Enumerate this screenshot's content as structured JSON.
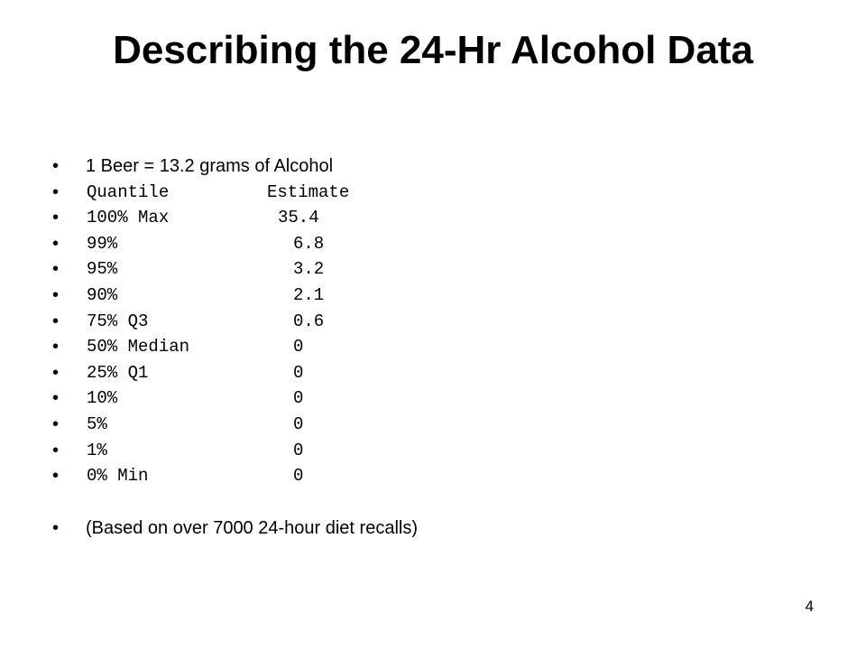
{
  "title": "Describing the 24-Hr Alcohol Data",
  "conversion_note": "1 Beer = 13.2 grams of Alcohol",
  "table_header": {
    "label": "Quantile",
    "value": "Estimate"
  },
  "quantiles": [
    {
      "label": "100% Max",
      "value": "35.4"
    },
    {
      "label": "99%",
      "value": "6.8"
    },
    {
      "label": "95%",
      "value": "3.2"
    },
    {
      "label": "90%",
      "value": "2.1"
    },
    {
      "label": "75% Q3",
      "value": "0.6"
    },
    {
      "label": "50% Median",
      "value": "0"
    },
    {
      "label": "25% Q1",
      "value": "0"
    },
    {
      "label": "10%",
      "value": "0"
    },
    {
      "label": "5%",
      "value": "0"
    },
    {
      "label": "1%",
      "value": "0"
    },
    {
      "label": "0% Min",
      "value": "0"
    }
  ],
  "footnote": "(Based on over 7000 24-hour diet recalls)",
  "page_number": "4",
  "bullet_char": "•"
}
